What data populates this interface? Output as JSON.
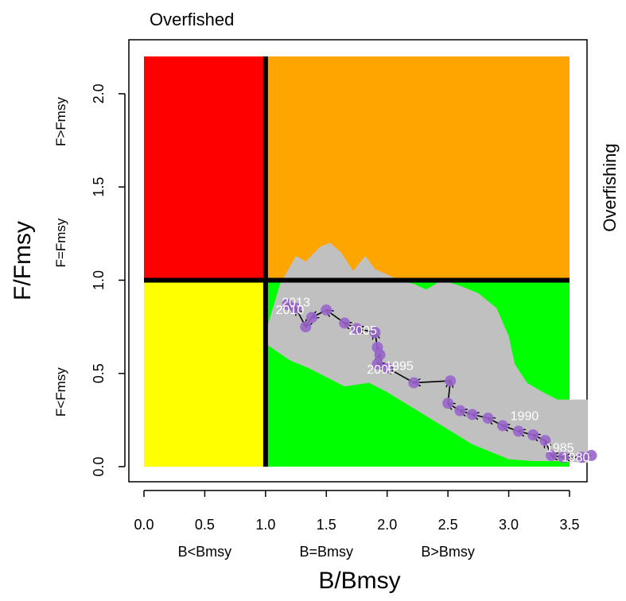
{
  "chart_data": {
    "type": "scatter",
    "title": "Overfished",
    "right_title": "Overfishing",
    "xlabel": "B/Bmsy",
    "ylabel": "F/Fmsy",
    "xlim": [
      0,
      3.5
    ],
    "ylim": [
      0,
      2.2
    ],
    "x_ticks": [
      0.0,
      0.5,
      1.0,
      1.5,
      2.0,
      2.5,
      3.0,
      3.5
    ],
    "x_tick_labels": [
      "0.0",
      "0.5",
      "1.0",
      "1.5",
      "2.0",
      "2.5",
      "3.0",
      "3.5"
    ],
    "y_ticks": [
      0.0,
      0.5,
      1.0,
      1.5,
      2.0
    ],
    "y_tick_labels": [
      "0.0",
      "0.5",
      "1.0",
      "1.5",
      "2.0"
    ],
    "x_zone_labels": [
      {
        "x": 0.5,
        "text": "B<Bmsy"
      },
      {
        "x": 1.5,
        "text": "B=Bmsy"
      },
      {
        "x": 2.5,
        "text": "B>Bmsy"
      }
    ],
    "y_zone_labels": [
      {
        "y": 0.4,
        "text": "F<Fmsy"
      },
      {
        "y": 1.2,
        "text": "F=Fmsy"
      },
      {
        "y": 1.85,
        "text": "F>Fmsy"
      }
    ],
    "quadrants": [
      {
        "name": "overfished-overfishing",
        "x": [
          0,
          1
        ],
        "y": [
          1,
          2.2
        ],
        "color": "#ff0000"
      },
      {
        "name": "healthy-overfishing",
        "x": [
          1,
          3.5
        ],
        "y": [
          1,
          2.2
        ],
        "color": "#ffa500"
      },
      {
        "name": "overfished-not-overfishing",
        "x": [
          0,
          1
        ],
        "y": [
          0,
          1
        ],
        "color": "#ffff00"
      },
      {
        "name": "healthy",
        "x": [
          1,
          3.5
        ],
        "y": [
          0,
          1
        ],
        "color": "#00ff00"
      }
    ],
    "reference_lines": {
      "x": 1.0,
      "y": 1.0
    },
    "uncertainty_color": "#c0c0c0",
    "uncertainty_band_upper": [
      [
        1.0,
        0.72
      ],
      [
        1.12,
        0.98
      ],
      [
        1.25,
        1.13
      ],
      [
        1.33,
        1.1
      ],
      [
        1.45,
        1.18
      ],
      [
        1.53,
        1.2
      ],
      [
        1.62,
        1.15
      ],
      [
        1.72,
        1.05
      ],
      [
        1.82,
        1.13
      ],
      [
        1.9,
        1.06
      ],
      [
        2.0,
        1.03
      ],
      [
        2.1,
        1.0
      ],
      [
        2.22,
        0.98
      ],
      [
        2.32,
        0.95
      ],
      [
        2.45,
        1.0
      ],
      [
        2.6,
        0.97
      ],
      [
        2.75,
        0.93
      ],
      [
        2.9,
        0.85
      ],
      [
        3.0,
        0.7
      ],
      [
        3.05,
        0.55
      ],
      [
        3.15,
        0.45
      ],
      [
        3.28,
        0.4
      ],
      [
        3.4,
        0.36
      ],
      [
        3.65,
        0.36
      ]
    ],
    "uncertainty_band_lower": [
      [
        3.65,
        0.02
      ],
      [
        3.4,
        0.03
      ],
      [
        3.2,
        0.03
      ],
      [
        3.0,
        0.04
      ],
      [
        2.85,
        0.08
      ],
      [
        2.7,
        0.12
      ],
      [
        2.55,
        0.18
      ],
      [
        2.4,
        0.24
      ],
      [
        2.25,
        0.3
      ],
      [
        2.1,
        0.36
      ],
      [
        2.0,
        0.4
      ],
      [
        1.85,
        0.45
      ],
      [
        1.65,
        0.43
      ],
      [
        1.5,
        0.48
      ],
      [
        1.35,
        0.53
      ],
      [
        1.2,
        0.57
      ],
      [
        1.0,
        0.66
      ]
    ],
    "series": [
      {
        "values": [
          {
            "x": 3.68,
            "y": 0.06
          },
          {
            "x": 3.6,
            "y": 0.05
          },
          {
            "x": 3.45,
            "y": 0.05
          },
          {
            "x": 3.35,
            "y": 0.06
          },
          {
            "x": 3.3,
            "y": 0.14
          },
          {
            "x": 3.2,
            "y": 0.17
          },
          {
            "x": 3.08,
            "y": 0.19
          },
          {
            "x": 2.95,
            "y": 0.22
          },
          {
            "x": 2.83,
            "y": 0.26
          },
          {
            "x": 2.7,
            "y": 0.28
          },
          {
            "x": 2.6,
            "y": 0.3
          },
          {
            "x": 2.5,
            "y": 0.34
          },
          {
            "x": 2.52,
            "y": 0.46
          },
          {
            "x": 2.22,
            "y": 0.45
          },
          {
            "x": 2.0,
            "y": 0.53
          },
          {
            "x": 1.92,
            "y": 0.55
          },
          {
            "x": 1.94,
            "y": 0.6
          },
          {
            "x": 1.92,
            "y": 0.64
          },
          {
            "x": 1.9,
            "y": 0.72
          },
          {
            "x": 1.75,
            "y": 0.74
          },
          {
            "x": 1.65,
            "y": 0.77
          },
          {
            "x": 1.5,
            "y": 0.84
          },
          {
            "x": 1.38,
            "y": 0.8
          },
          {
            "x": 1.33,
            "y": 0.75
          },
          {
            "x": 1.25,
            "y": 0.85
          },
          {
            "x": 1.18,
            "y": 0.87
          }
        ]
      }
    ],
    "point_color": "#9966cc",
    "point_labels": [
      {
        "x": 3.55,
        "y": 0.05,
        "text": "1980"
      },
      {
        "x": 3.42,
        "y": 0.1,
        "text": "1985"
      },
      {
        "x": 3.13,
        "y": 0.27,
        "text": "1990"
      },
      {
        "x": 2.1,
        "y": 0.54,
        "text": "1995"
      },
      {
        "x": 1.95,
        "y": 0.52,
        "text": "2000"
      },
      {
        "x": 1.8,
        "y": 0.73,
        "text": "2005"
      },
      {
        "x": 1.2,
        "y": 0.84,
        "text": "2010"
      },
      {
        "x": 1.25,
        "y": 0.88,
        "text": "2013"
      }
    ]
  }
}
